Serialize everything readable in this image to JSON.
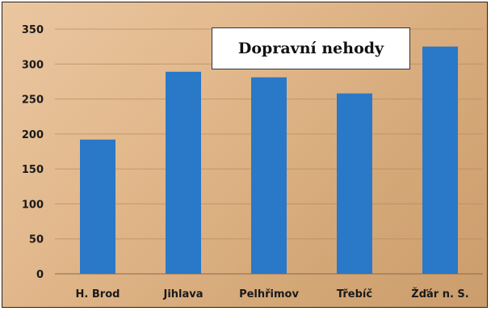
{
  "chart_data": {
    "type": "bar",
    "title": "Dopravní nehody",
    "categories": [
      "H. Brod",
      "Jihlava",
      "Pelhřimov",
      "Třebíč",
      "Žďár n. S."
    ],
    "values": [
      192,
      289,
      281,
      258,
      325
    ],
    "xlabel": "",
    "ylabel": "",
    "ylim": [
      0,
      350
    ],
    "yticks": [
      "0",
      "50",
      "100",
      "150",
      "200",
      "250",
      "300",
      "350"
    ],
    "grid": true,
    "legend": "none",
    "colors": {
      "bar": "#2a78c8",
      "grid": "#b58a60",
      "axis": "#8a6a4a"
    }
  }
}
